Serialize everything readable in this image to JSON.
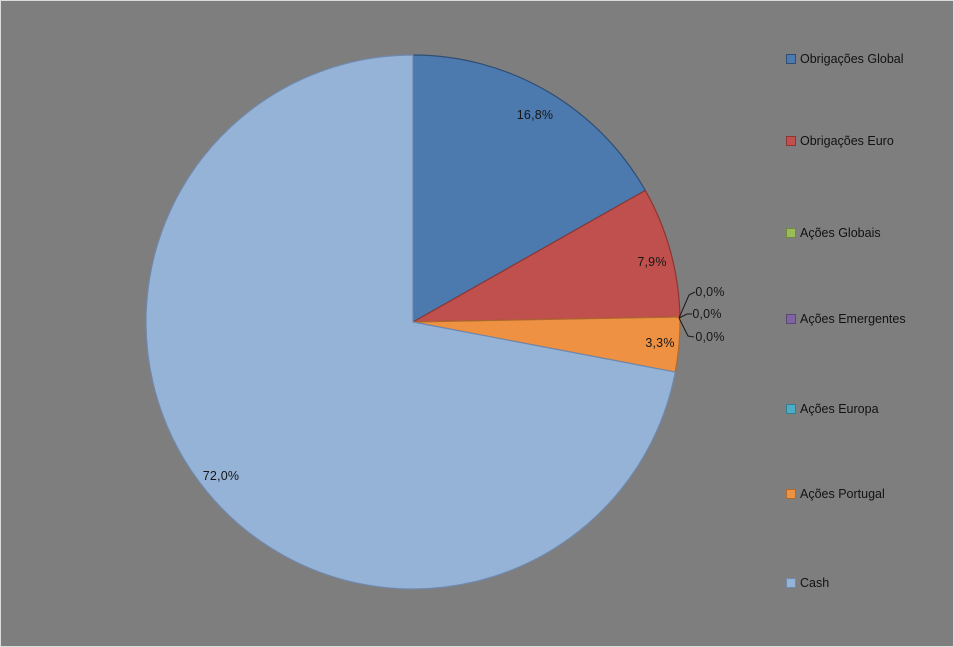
{
  "chart": {
    "background_color": "#7E7E7E",
    "frame_border_color": "#DCDCDC",
    "text_color": "#161616",
    "leader_line_color": "#1A1A1A"
  },
  "chart_data": {
    "type": "pie",
    "title": "",
    "legend_position": "right",
    "value_format": "percent, comma decimal separator",
    "start_angle_deg": 0,
    "direction": "clockwise",
    "slices": [
      {
        "label": "Obrigações Global",
        "value": 16.8,
        "display": "16,8%",
        "color": "#4C7AAF",
        "border": "#2F4E72"
      },
      {
        "label": "Obrigações Euro",
        "value": 7.9,
        "display": "7,9%",
        "color": "#C0504D",
        "border": "#8A3734"
      },
      {
        "label": "Ações Globais",
        "value": 0.0,
        "display": "0,0%",
        "color": "#9BBB59",
        "border": "#6F8A3D"
      },
      {
        "label": "Ações Emergentes",
        "value": 0.0,
        "display": "0,0%",
        "color": "#8064A2",
        "border": "#5C4876"
      },
      {
        "label": "Ações Europa",
        "value": 0.0,
        "display": "0,0%",
        "color": "#4BACC6",
        "border": "#357E92"
      },
      {
        "label": "Ações Portugal",
        "value": 3.3,
        "display": "3,3%",
        "color": "#EE9143",
        "border": "#AE6A2D"
      },
      {
        "label": "Cash",
        "value": 72.0,
        "display": "72,0%",
        "color": "#95B3D7",
        "border": "#7088AB"
      }
    ]
  }
}
